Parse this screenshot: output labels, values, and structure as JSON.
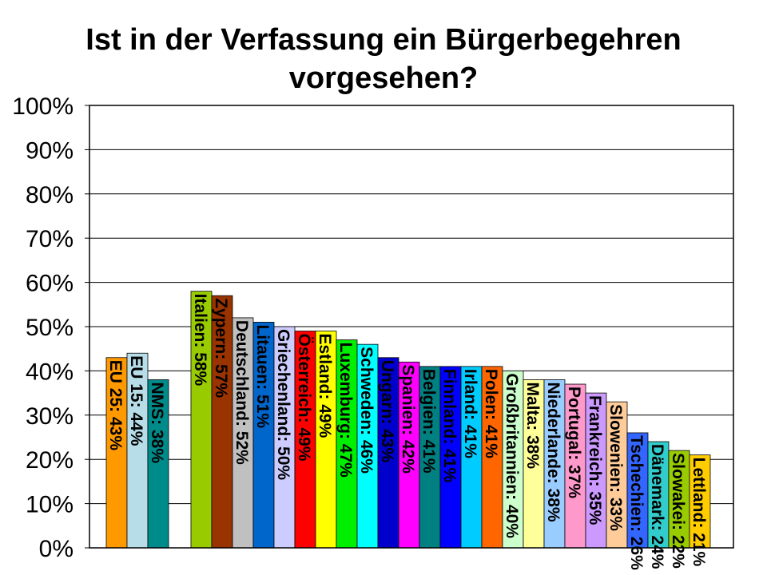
{
  "chart_data": {
    "type": "bar",
    "title_lines": [
      "Ist in der Verfassung ein Bürgerbegehren",
      "vorgesehen?"
    ],
    "ylim": [
      0,
      100
    ],
    "grid": true,
    "y_ticks": [
      {
        "value": 0,
        "label": "0%"
      },
      {
        "value": 10,
        "label": "10%"
      },
      {
        "value": 20,
        "label": "20%"
      },
      {
        "value": 30,
        "label": "30%"
      },
      {
        "value": 40,
        "label": "40%"
      },
      {
        "value": 50,
        "label": "50%"
      },
      {
        "value": 60,
        "label": "60%"
      },
      {
        "value": 70,
        "label": "70%"
      },
      {
        "value": 80,
        "label": "80%"
      },
      {
        "value": 90,
        "label": "90%"
      },
      {
        "value": 100,
        "label": "100%"
      }
    ],
    "bars": [
      {
        "label": "EU 25: 43%",
        "value": 43,
        "color": "#FF9900"
      },
      {
        "label": "EU 15: 44%",
        "value": 44,
        "color": "#B7DEE8"
      },
      {
        "label": "NMS: 38%",
        "value": 38,
        "color": "#008B8B"
      },
      {
        "label": "Italien: 58%",
        "value": 58,
        "color": "#99CC00",
        "group_gap": true
      },
      {
        "label": "Zypern: 57%",
        "value": 57,
        "color": "#993300"
      },
      {
        "label": "Deutschland: 52%",
        "value": 52,
        "color": "#C0C0C0"
      },
      {
        "label": "Litauen: 51%",
        "value": 51,
        "color": "#0066CC"
      },
      {
        "label": "Griechenland: 50%",
        "value": 50,
        "color": "#CCCCFF"
      },
      {
        "label": "Österreich: 49%",
        "value": 49,
        "color": "#FF0000"
      },
      {
        "label": "Estland: 49%",
        "value": 49,
        "color": "#FFFF00"
      },
      {
        "label": "Luxemburg: 47%",
        "value": 47,
        "color": "#00EE00"
      },
      {
        "label": "Schweden: 46%",
        "value": 46,
        "color": "#00FFFF"
      },
      {
        "label": "Ungarn: 43%",
        "value": 43,
        "color": "#0000CC"
      },
      {
        "label": "Spanien: 42%",
        "value": 42,
        "color": "#FF00FF"
      },
      {
        "label": "Belgien: 41%",
        "value": 41,
        "color": "#008080"
      },
      {
        "label": "Finnland: 41%",
        "value": 41,
        "color": "#0000FF"
      },
      {
        "label": "Irland: 41%",
        "value": 41,
        "color": "#00CCFF"
      },
      {
        "label": "Polen: 41%",
        "value": 41,
        "color": "#FF6600"
      },
      {
        "label": "Großbritannien: 40%",
        "value": 40,
        "color": "#CCFFCC"
      },
      {
        "label": "Malta: 38%",
        "value": 38,
        "color": "#FFFF99"
      },
      {
        "label": "Niederlande: 38%",
        "value": 38,
        "color": "#99CCFF"
      },
      {
        "label": "Portugal: 37%",
        "value": 37,
        "color": "#FF99CC"
      },
      {
        "label": "Frankreich: 35%",
        "value": 35,
        "color": "#CC99FF"
      },
      {
        "label": "Slowenien: 33%",
        "value": 33,
        "color": "#FFCC99"
      },
      {
        "label": "Tschechien: 26%",
        "value": 26,
        "color": "#3366FF"
      },
      {
        "label": "Dänemark: 24%",
        "value": 24,
        "color": "#33CCCC"
      },
      {
        "label": "Slowakei: 22%",
        "value": 22,
        "color": "#99CC00"
      },
      {
        "label": "Lettland: 21%",
        "value": 21,
        "color": "#FFCC00"
      }
    ]
  }
}
